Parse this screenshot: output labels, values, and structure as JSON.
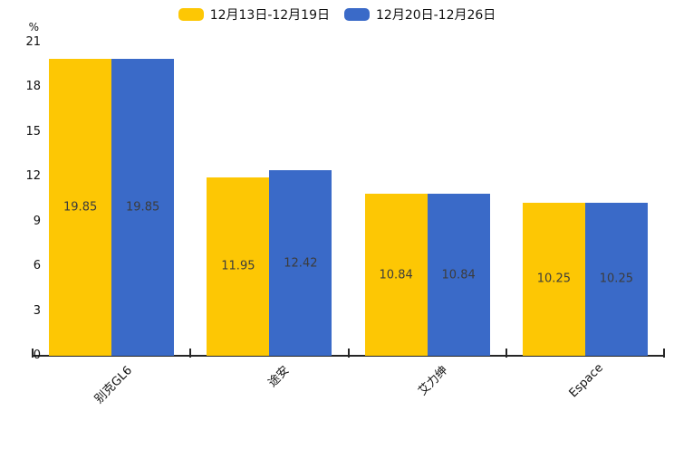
{
  "chart_data": {
    "type": "bar",
    "title": "",
    "categories": [
      "别克GL6",
      "途安",
      "艾力绅",
      "Espace"
    ],
    "series": [
      {
        "name": "12月13日-12月19日",
        "color": "#FDC704",
        "values": [
          19.85,
          11.95,
          10.84,
          10.25
        ]
      },
      {
        "name": "12月20日-12月26日",
        "color": "#3A6AC8",
        "values": [
          19.85,
          12.42,
          10.84,
          10.25
        ]
      }
    ],
    "xlabel": "",
    "ylabel": "%",
    "ylim": [
      0,
      21
    ],
    "yticks": [
      0,
      3,
      6,
      9,
      12,
      15,
      18,
      21
    ],
    "grid": false,
    "legend_position": "top",
    "value_labels": true,
    "value_label_color": "#3c3c3c",
    "axis_color": "#262626",
    "tick_label_color": "#111111"
  }
}
